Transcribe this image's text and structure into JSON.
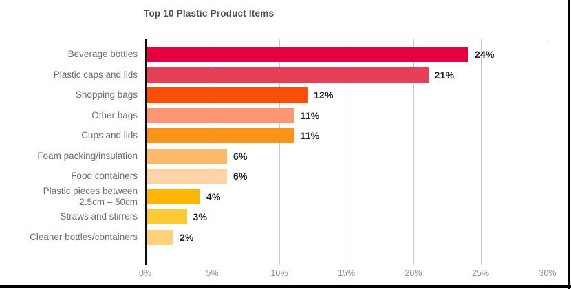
{
  "chart_data": {
    "type": "bar",
    "orientation": "horizontal",
    "title": "Top 10 Plastic Product Items",
    "categories": [
      "Beverage bottles",
      "Plastic caps and lids",
      "Shopping bags",
      "Other bags",
      "Cups and lids",
      "Foam packing/insulation",
      "Food containers",
      "Plastic pieces between\n2.5cm – 50cm",
      "Straws and stirrers",
      "Cleaner bottles/containers"
    ],
    "values": [
      24,
      21,
      12,
      11,
      11,
      6,
      6,
      4,
      3,
      2
    ],
    "value_labels": [
      "24%",
      "21%",
      "12%",
      "11%",
      "11%",
      "6%",
      "6%",
      "4%",
      "3%",
      "2%"
    ],
    "bar_colors": [
      "#E50140",
      "#E54058",
      "#FB4E09",
      "#FB9772",
      "#FA9319",
      "#FCB96B",
      "#FDD4A7",
      "#FDB605",
      "#FEC937",
      "#FED27A"
    ],
    "x_ticks": [
      "0%",
      "5%",
      "10%",
      "15%",
      "20%",
      "25%",
      "30%"
    ],
    "xlim": [
      0,
      30
    ],
    "grid": "vertical",
    "legend": "none"
  },
  "colors": {
    "background": "#ffffff",
    "frame_border": "#000000",
    "title_text": "#4d4d4d",
    "category_text": "#6e6e6e",
    "value_text": "#1f1f1f",
    "tick_text": "#8e8e8e",
    "gridline": "#c9c9c9",
    "axis_line": "#0a0a0a"
  }
}
